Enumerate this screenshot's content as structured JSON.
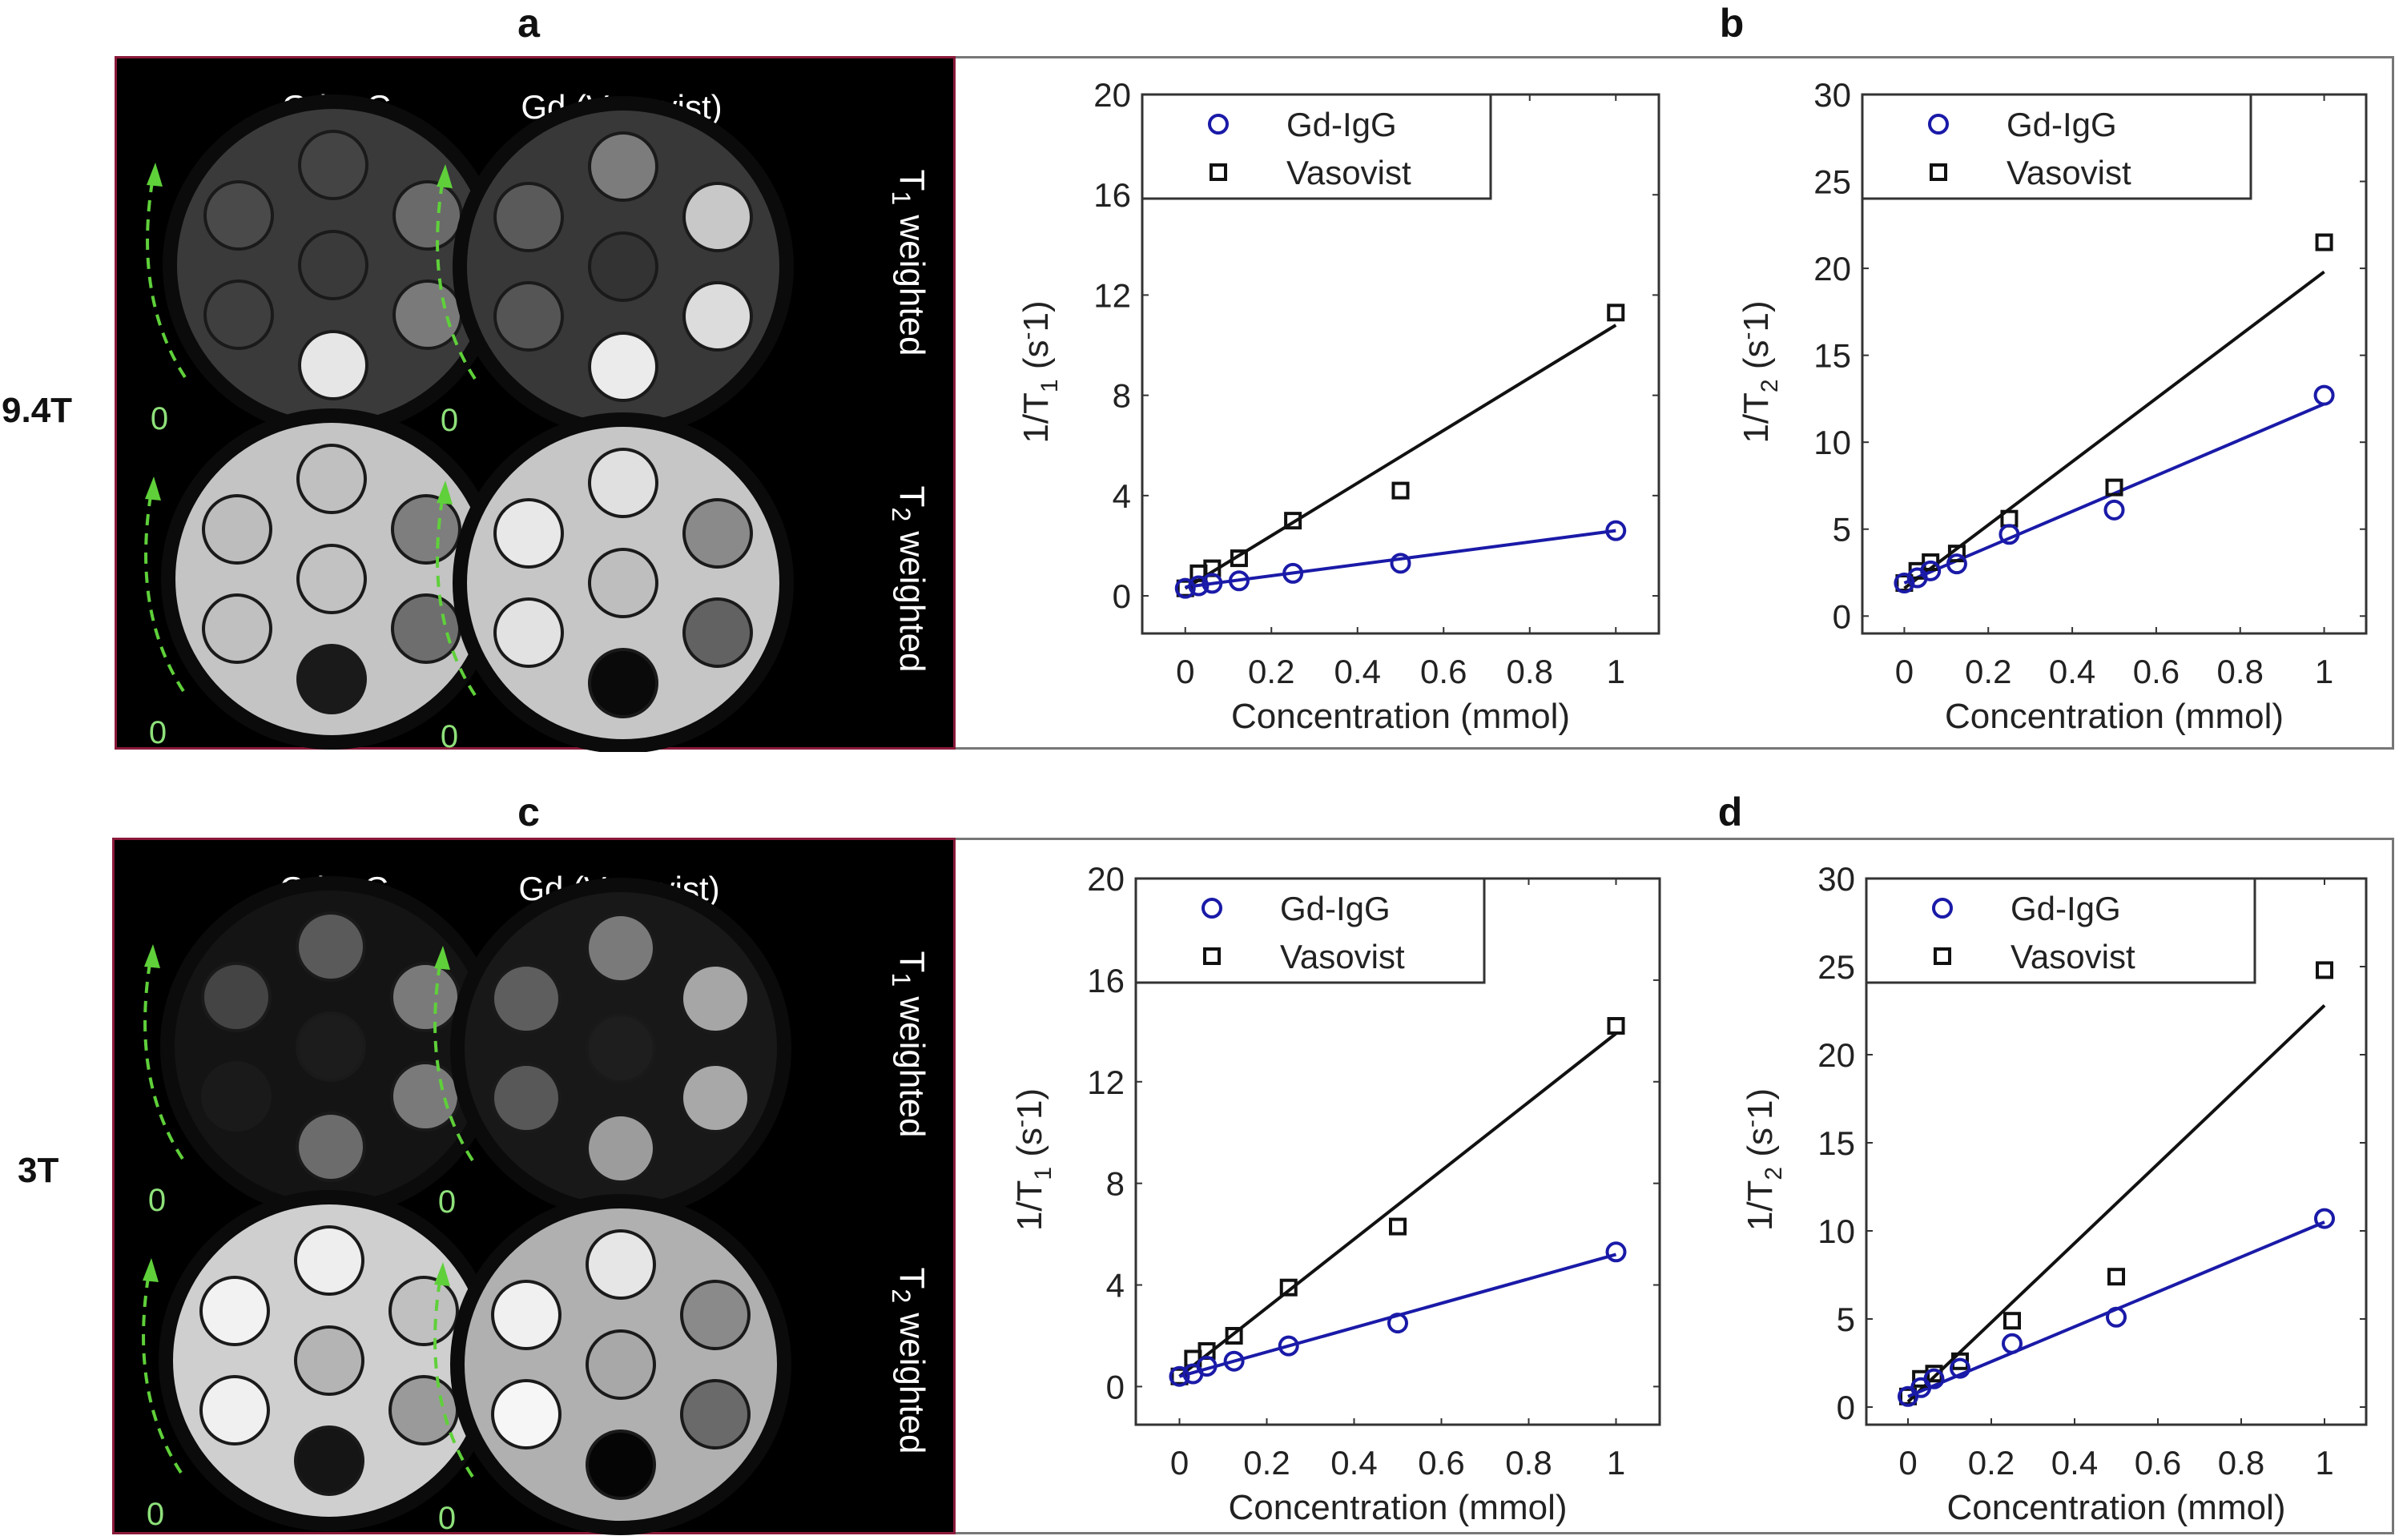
{
  "panel_letters": [
    "a",
    "b",
    "c",
    "d"
  ],
  "field_labels": [
    "9.4T",
    "3T"
  ],
  "mri_panels": [
    {
      "field": "9.4T",
      "column_labels": [
        "Gd-IgG",
        "Gd (Vasovist)"
      ],
      "row_labels": [
        {
          "main": "T",
          "sub": "1",
          "rest": " weighted"
        },
        {
          "main": "T",
          "sub": "2",
          "rest": " weighted"
        }
      ],
      "zero_marker": "0",
      "phantoms": [
        {
          "row": "T1",
          "agent": "Gd-IgG",
          "bg": "#3a3a3a",
          "vials": [
            "#444444",
            "#4a4a4a",
            "#6a6a6a",
            "#3a3a3a",
            "#3f3f3f",
            "#7a7a7a",
            "#e6e6e6"
          ]
        },
        {
          "row": "T1",
          "agent": "Vasovist",
          "bg": "#383838",
          "vials": [
            "#7c7c7c",
            "#5a5a5a",
            "#c8c8c8",
            "#333333",
            "#555555",
            "#dcdcdc",
            "#ebebeb"
          ]
        },
        {
          "row": "T2",
          "agent": "Gd-IgG",
          "bg": "#c4c4c4",
          "vials": [
            "#c0c0c0",
            "#bdbdbd",
            "#7e7e7e",
            "#c2c2c2",
            "#c0c0c0",
            "#6e6e6e",
            "#1a1a1a"
          ]
        },
        {
          "row": "T2",
          "agent": "Vasovist",
          "bg": "#c6c6c6",
          "vials": [
            "#e0e0e0",
            "#e8e8e8",
            "#8a8a8a",
            "#bebebe",
            "#e2e2e2",
            "#626262",
            "#0a0a0a"
          ]
        }
      ]
    },
    {
      "field": "3T",
      "column_labels": [
        "Gd-IgG",
        "Gd (Vasovist)"
      ],
      "row_labels": [
        {
          "main": "T",
          "sub": "1",
          "rest": " weighted"
        },
        {
          "main": "T",
          "sub": "2",
          "rest": " weighted"
        }
      ],
      "zero_marker": "0",
      "phantoms": [
        {
          "row": "T1",
          "agent": "Gd-IgG",
          "bg": "#141414",
          "vials": [
            "#5a5a5a",
            "#444444",
            "#7a7a7a",
            "#1c1c1c",
            "#1a1a1a",
            "#7a7a7a",
            "#6c6c6c"
          ]
        },
        {
          "row": "T1",
          "agent": "Vasovist",
          "bg": "#181818",
          "vials": [
            "#7a7a7a",
            "#5e5e5e",
            "#a6a6a6",
            "#1e1e1e",
            "#585858",
            "#a8a8a8",
            "#9c9c9c"
          ]
        },
        {
          "row": "T2",
          "agent": "Gd-IgG",
          "bg": "#cfcfcf",
          "vials": [
            "#eeeeee",
            "#f2f2f2",
            "#c0c0c0",
            "#b4b4b4",
            "#f0f0f0",
            "#9a9a9a",
            "#151515"
          ]
        },
        {
          "row": "T2",
          "agent": "Vasovist",
          "bg": "#b0b0b0",
          "vials": [
            "#e6e6e6",
            "#f0f0f0",
            "#8a8a8a",
            "#a8a8a8",
            "#f6f6f6",
            "#6a6a6a",
            "#050505"
          ]
        }
      ]
    }
  ],
  "colors": {
    "gd_igg": "#1a1aa8",
    "vasovist": "#111111",
    "arrow": "#5fd03a",
    "mri_border": "#8a1a3a"
  },
  "chart_data": [
    {
      "id": "a",
      "type": "scatter",
      "title": "",
      "xlabel": "Concentration (mmol)",
      "ylabel": {
        "main": "1/T",
        "sub": "1",
        "unit_open": " (s",
        "sup": "-",
        "unit_close": "1)"
      },
      "xlim": [
        -0.1,
        1.1
      ],
      "ylim": [
        -1.5,
        20
      ],
      "xticks": [
        0,
        0.2,
        0.4,
        0.6,
        0.8,
        1
      ],
      "xtick_labels": [
        "0",
        "0.2",
        "0.4",
        "0.6",
        "0.8",
        "1"
      ],
      "yticks": [
        0,
        4,
        8,
        12,
        16,
        20
      ],
      "ytick_labels": [
        "0",
        "4",
        "8",
        "12",
        "16",
        "20"
      ],
      "legend": {
        "position": "top-left",
        "entries": [
          "Gd-IgG",
          "Vasovist"
        ]
      },
      "x": [
        0,
        0.031,
        0.0625,
        0.125,
        0.25,
        0.5,
        1
      ],
      "series": [
        {
          "name": "Gd-IgG",
          "marker": "circle",
          "values": [
            0.3,
            0.4,
            0.5,
            0.6,
            0.9,
            1.3,
            2.6
          ],
          "fit": [
            0.35,
            2.6
          ]
        },
        {
          "name": "Vasovist",
          "marker": "square",
          "values": [
            0.3,
            0.9,
            1.1,
            1.5,
            3.0,
            4.2,
            11.3
          ],
          "fit": [
            0.3,
            10.8
          ]
        }
      ]
    },
    {
      "id": "b",
      "type": "scatter",
      "title": "",
      "xlabel": "Concentration (mmol)",
      "ylabel": {
        "main": "1/T",
        "sub": "2",
        "unit_open": " (s",
        "sup": "-",
        "unit_close": "1)"
      },
      "xlim": [
        -0.1,
        1.1
      ],
      "ylim": [
        -1,
        30
      ],
      "xticks": [
        0,
        0.2,
        0.4,
        0.6,
        0.8,
        1
      ],
      "xtick_labels": [
        "0",
        "0.2",
        "0.4",
        "0.6",
        "0.8",
        "1"
      ],
      "yticks": [
        0,
        5,
        10,
        15,
        20,
        25,
        30
      ],
      "ytick_labels": [
        "0",
        "5",
        "10",
        "15",
        "20",
        "25",
        "30"
      ],
      "legend": {
        "position": "top-left",
        "entries": [
          "Gd-IgG",
          "Vasovist"
        ]
      },
      "x": [
        0,
        0.031,
        0.0625,
        0.125,
        0.25,
        0.5,
        1
      ],
      "series": [
        {
          "name": "Gd-IgG",
          "marker": "circle",
          "values": [
            1.9,
            2.2,
            2.6,
            3.0,
            4.7,
            6.1,
            12.7
          ],
          "fit": [
            1.9,
            12.2
          ]
        },
        {
          "name": "Vasovist",
          "marker": "square",
          "values": [
            1.9,
            2.6,
            3.1,
            3.6,
            5.6,
            7.4,
            21.5
          ],
          "fit": [
            1.6,
            19.8
          ]
        }
      ]
    },
    {
      "id": "c",
      "type": "scatter",
      "title": "",
      "xlabel": "Concentration (mmol)",
      "ylabel": {
        "main": "1/T",
        "sub": "1",
        "unit_open": " (s",
        "sup": "-",
        "unit_close": "1)"
      },
      "xlim": [
        -0.1,
        1.1
      ],
      "ylim": [
        -1.5,
        20
      ],
      "xticks": [
        0,
        0.2,
        0.4,
        0.6,
        0.8,
        1
      ],
      "xtick_labels": [
        "0",
        "0.2",
        "0.4",
        "0.6",
        "0.8",
        "1"
      ],
      "yticks": [
        0,
        4,
        8,
        12,
        16,
        20
      ],
      "ytick_labels": [
        "0",
        "4",
        "8",
        "12",
        "16",
        "20"
      ],
      "legend": {
        "position": "top-left",
        "entries": [
          "Gd-IgG",
          "Vasovist"
        ]
      },
      "x": [
        0,
        0.031,
        0.0625,
        0.125,
        0.25,
        0.5,
        1
      ],
      "series": [
        {
          "name": "Gd-IgG",
          "marker": "circle",
          "values": [
            0.4,
            0.5,
            0.8,
            1.0,
            1.6,
            2.5,
            5.3
          ],
          "fit": [
            0.4,
            5.2
          ]
        },
        {
          "name": "Vasovist",
          "marker": "square",
          "values": [
            0.4,
            1.1,
            1.4,
            2.0,
            3.9,
            6.3,
            14.2
          ],
          "fit": [
            0.4,
            13.9
          ]
        }
      ]
    },
    {
      "id": "d",
      "type": "scatter",
      "title": "",
      "xlabel": "Concentration (mmol)",
      "ylabel": {
        "main": "1/T",
        "sub": "2",
        "unit_open": " (s",
        "sup": "-",
        "unit_close": "1)"
      },
      "xlim": [
        -0.1,
        1.1
      ],
      "ylim": [
        -1,
        30
      ],
      "xticks": [
        0,
        0.2,
        0.4,
        0.6,
        0.8,
        1
      ],
      "xtick_labels": [
        "0",
        "0.2",
        "0.4",
        "0.6",
        "0.8",
        "1"
      ],
      "yticks": [
        0,
        5,
        10,
        15,
        20,
        25,
        30
      ],
      "ytick_labels": [
        "0",
        "5",
        "10",
        "15",
        "20",
        "25",
        "30"
      ],
      "legend": {
        "position": "top-left",
        "entries": [
          "Gd-IgG",
          "Vasovist"
        ]
      },
      "x": [
        0,
        0.031,
        0.0625,
        0.125,
        0.25,
        0.5,
        1
      ],
      "series": [
        {
          "name": "Gd-IgG",
          "marker": "circle",
          "values": [
            0.6,
            1.1,
            1.6,
            2.2,
            3.6,
            5.1,
            10.7
          ],
          "fit": [
            0.6,
            10.5
          ]
        },
        {
          "name": "Vasovist",
          "marker": "square",
          "values": [
            0.6,
            1.6,
            1.9,
            2.6,
            4.9,
            7.4,
            24.8
          ],
          "fit": [
            0.3,
            22.8
          ]
        }
      ]
    }
  ]
}
